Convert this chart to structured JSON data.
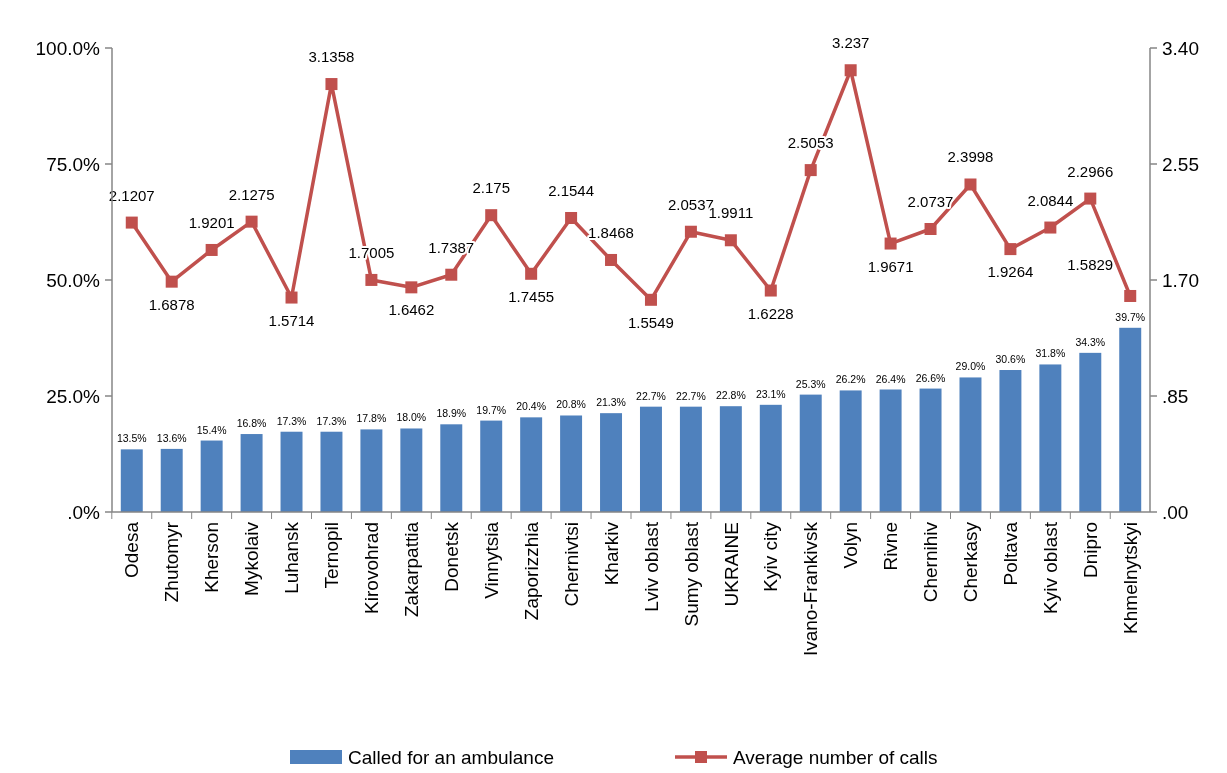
{
  "chart_data": {
    "type": "bar",
    "categories": [
      "Odesa",
      "Zhutomyr",
      "Kherson",
      "Mykolaiv",
      "Luhansk",
      "Ternopil",
      "Kirovohrad",
      "Zakarpattia",
      "Donetsk",
      "Vinnytsia",
      "Zaporizzhia",
      "Chernivtsi",
      "Kharkiv",
      "Lviv oblast",
      "Sumy oblast",
      "UKRAINE",
      "Kyiv city",
      "Ivano-Frankivsk",
      "Volyn",
      "Rivne",
      "Chernihiv",
      "Cherkasy",
      "Poltava",
      "Kyiv oblast",
      "Dnipro",
      "Khmelnytskyi"
    ],
    "series": [
      {
        "name": "Called for an ambulance",
        "color": "#4f81bd",
        "values": [
          13.5,
          13.6,
          15.4,
          16.8,
          17.3,
          17.3,
          17.8,
          18.0,
          18.9,
          19.7,
          20.4,
          20.8,
          21.3,
          22.7,
          22.7,
          22.8,
          23.1,
          25.3,
          26.2,
          26.4,
          26.6,
          29.0,
          30.6,
          31.8,
          34.3,
          39.7
        ],
        "value_labels": [
          "13.5%",
          "13.6%",
          "15.4%",
          "16.8%",
          "17.3%",
          "17.3%",
          "17.8%",
          "18.0%",
          "18.9%",
          "19.7%",
          "20.4%",
          "20.8%",
          "21.3%",
          "22.7%",
          "22.7%",
          "22.8%",
          "23.1%",
          "25.3%",
          "26.2%",
          "26.4%",
          "26.6%",
          "29.0%",
          "30.6%",
          "31.8%",
          "34.3%",
          "39.7%"
        ]
      },
      {
        "name": "Average number of calls",
        "type": "line",
        "axis": "y2",
        "color": "#c0504d",
        "marker": "square",
        "line_style": "solid",
        "values": [
          2.1207,
          1.6878,
          1.9201,
          2.1275,
          1.5714,
          3.1358,
          1.7005,
          1.6462,
          1.7387,
          2.175,
          1.7455,
          2.1544,
          1.8468,
          1.5549,
          2.0537,
          1.9911,
          1.6228,
          2.5053,
          3.237,
          1.9671,
          2.0737,
          2.3998,
          1.9264,
          2.0844,
          2.2966,
          1.5829
        ],
        "value_labels": [
          "2.1207",
          "1.6878",
          "1.9201",
          "2.1275",
          "1.5714",
          "3.1358",
          "1.7005",
          "1.6462",
          "1.7387",
          "2.175",
          "1.7455",
          "2.1544",
          "1.8468",
          "1.5549",
          "2.0537",
          "1.9911",
          "1.6228",
          "2.5053",
          "3.237",
          "1.9671",
          "2.0737",
          "2.3998",
          "1.9264",
          "2.0844",
          "2.2966",
          "1.5829"
        ]
      }
    ],
    "ylim": [
      0,
      100
    ],
    "yticks": [
      {
        "value": 0,
        "label": ".0%"
      },
      {
        "value": 25,
        "label": "25.0%"
      },
      {
        "value": 50,
        "label": "50.0%"
      },
      {
        "value": 75,
        "label": "75.0%"
      },
      {
        "value": 100,
        "label": "100.0%"
      }
    ],
    "y2lim": [
      0,
      3.4
    ],
    "y2ticks": [
      {
        "value": 0,
        "label": ".00"
      },
      {
        "value": 0.85,
        "label": ".85"
      },
      {
        "value": 1.7,
        "label": "1.70"
      },
      {
        "value": 2.55,
        "label": "2.55"
      },
      {
        "value": 3.4,
        "label": "3.40"
      }
    ],
    "grid": false,
    "legend": "bottom"
  }
}
